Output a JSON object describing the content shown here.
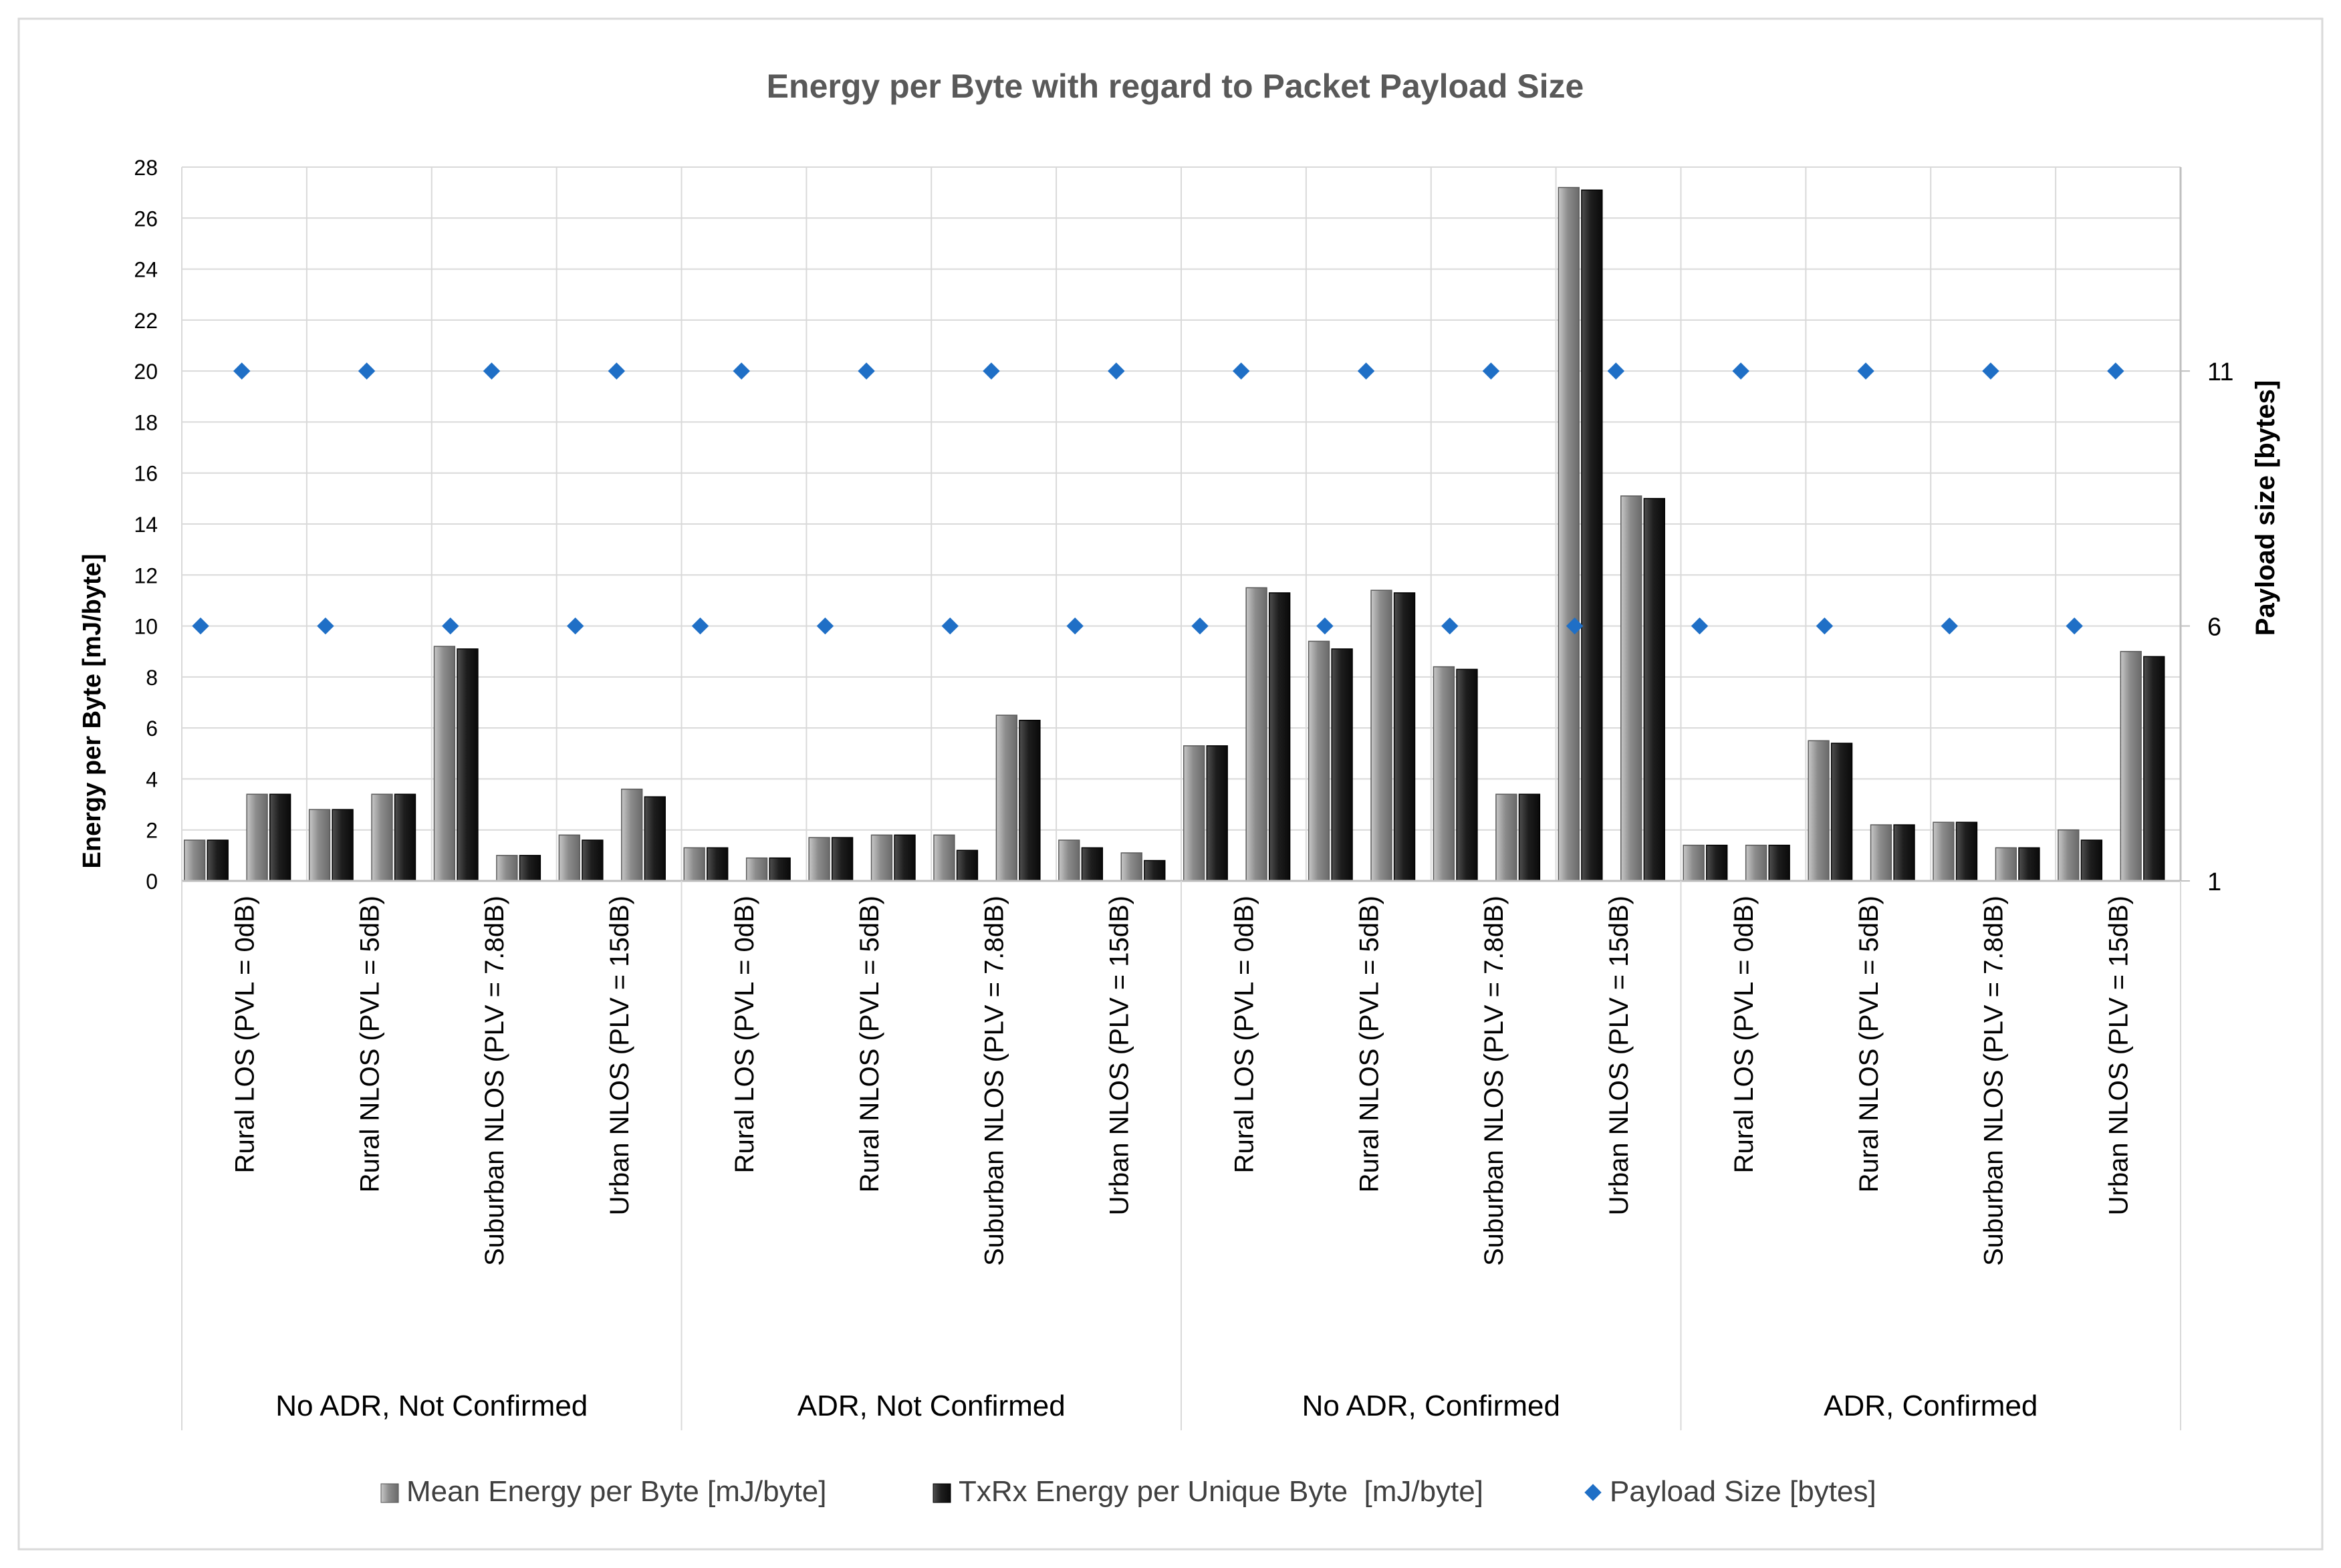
{
  "chart_data": {
    "type": "bar",
    "title": "Energy per Byte with regard to Packet Payload Size",
    "ylabel": "Energy per Byte [mJ/byte]",
    "y2label": "Payload size [bytes]",
    "ylim": [
      0,
      28
    ],
    "yticks": [
      "0",
      "2",
      "4",
      "6",
      "8",
      "10",
      "12",
      "14",
      "16",
      "18",
      "20",
      "22",
      "24",
      "26",
      "28"
    ],
    "y2lim": [
      1,
      15
    ],
    "y2ticks": [
      {
        "value": 1,
        "label": "1"
      },
      {
        "value": 6,
        "label": "6"
      },
      {
        "value": 11,
        "label": "11"
      }
    ],
    "grid": true,
    "legend_position": "bottom",
    "groups": [
      "No ADR, Not Confirmed",
      "ADR, Not Confirmed",
      "No ADR, Confirmed",
      "ADR, Confirmed"
    ],
    "categories": [
      "Rural LOS (PVL = 0dB)",
      "Rural NLOS (PVL = 5dB)",
      "Suburban NLOS (PLV = 7.8dB)",
      "Urban NLOS (PLV = 15dB)",
      "Rural LOS (PVL = 0dB)",
      "Rural NLOS (PVL = 5dB)",
      "Suburban NLOS (PLV = 7.8dB)",
      "Urban NLOS (PLV = 15dB)",
      "Rural LOS (PVL = 0dB)",
      "Rural NLOS (PVL = 5dB)",
      "Suburban NLOS (PLV = 7.8dB)",
      "Urban NLOS (PLV = 15dB)",
      "Rural LOS (PVL = 0dB)",
      "Rural NLOS (PVL = 5dB)",
      "Suburban NLOS (PLV = 7.8dB)",
      "Urban NLOS (PLV = 15dB)"
    ],
    "payload_sizes": [
      6,
      11
    ],
    "series": [
      {
        "name": "Mean Energy per Byte [mJ/byte]",
        "kind": "bar",
        "color": "#8c8c8c",
        "values": [
          [
            1.6,
            3.4
          ],
          [
            2.8,
            3.4
          ],
          [
            9.2,
            1.0
          ],
          [
            1.8,
            3.6
          ],
          [
            1.3,
            0.9
          ],
          [
            1.7,
            1.8
          ],
          [
            1.8,
            6.5
          ],
          [
            1.6,
            1.1
          ],
          [
            5.3,
            11.5
          ],
          [
            9.4,
            11.4
          ],
          [
            8.4,
            3.4
          ],
          [
            27.2,
            15.1
          ],
          [
            1.4,
            1.4
          ],
          [
            5.5,
            2.2
          ],
          [
            2.3,
            1.3
          ],
          [
            2.0,
            9.0
          ]
        ]
      },
      {
        "name": "TxRx Energy per Unique Byte  [mJ/byte]",
        "kind": "bar",
        "color": "#1e1e1e",
        "values": [
          [
            1.6,
            3.4
          ],
          [
            2.8,
            3.4
          ],
          [
            9.1,
            1.0
          ],
          [
            1.6,
            3.3
          ],
          [
            1.3,
            0.9
          ],
          [
            1.7,
            1.8
          ],
          [
            1.2,
            6.3
          ],
          [
            1.3,
            0.8
          ],
          [
            5.3,
            11.3
          ],
          [
            9.1,
            11.3
          ],
          [
            8.3,
            3.4
          ],
          [
            27.1,
            15.0
          ],
          [
            1.4,
            1.4
          ],
          [
            5.4,
            2.2
          ],
          [
            2.3,
            1.3
          ],
          [
            1.6,
            8.8
          ]
        ]
      },
      {
        "name": "Payload Size [bytes]",
        "kind": "scatter",
        "axis": "right",
        "color": "#1f6fc6",
        "values": [
          6,
          11
        ]
      }
    ]
  }
}
